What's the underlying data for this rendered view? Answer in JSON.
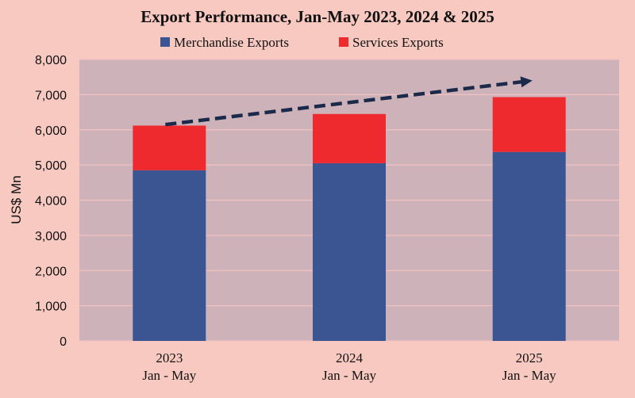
{
  "chart_data": {
    "type": "bar",
    "stacked": true,
    "title": "Export Performance, Jan-May 2023, 2024 & 2025",
    "ylabel": "US$ Mn",
    "xlabel": "",
    "categories": [
      [
        "2023",
        "Jan - May"
      ],
      [
        "2024",
        "Jan - May"
      ],
      [
        "2025",
        "Jan - May"
      ]
    ],
    "yticks": [
      "0",
      "1,000",
      "2,000",
      "3,000",
      "4,000",
      "5,000",
      "6,000",
      "7,000",
      "8,000"
    ],
    "ylim": [
      0,
      8000
    ],
    "grid": true,
    "legend_position": "top",
    "series": [
      {
        "name": "Merchandise Exports",
        "values": [
          4850,
          5050,
          5370
        ],
        "color": "#3a5592"
      },
      {
        "name": "Services Exports",
        "values": [
          1270,
          1400,
          1560
        ],
        "color": "#ee2a2e"
      }
    ],
    "annotation": {
      "type": "dashed-arrow",
      "from_x_index": 0,
      "from_y": 6150,
      "to_x_index": 2,
      "to_y": 7400,
      "color": "#1b2a4a"
    }
  },
  "colors": {
    "background": "#f7c9c1",
    "plot_background": "#cdb3b9",
    "gridline": "#f2c2c2"
  }
}
